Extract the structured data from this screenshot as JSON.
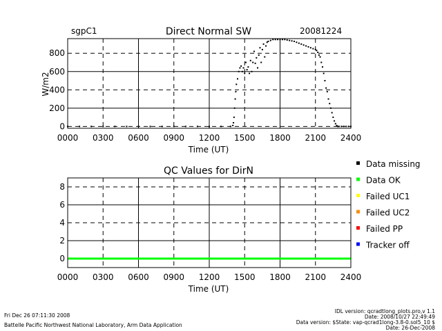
{
  "header": {
    "site": "sgpC1",
    "date": "20081224"
  },
  "chart_data": [
    {
      "type": "scatter",
      "title": "Direct Normal SW",
      "xlabel": "Time (UT)",
      "ylabel": "W/m2",
      "xlim": [
        0,
        2400
      ],
      "ylim": [
        -20,
        960
      ],
      "x_tick_labels": [
        "0000",
        "0300",
        "0600",
        "0900",
        "1200",
        "1500",
        "1800",
        "2100",
        "2400"
      ],
      "y_ticks": [
        0,
        200,
        400,
        600,
        800
      ],
      "grid": true,
      "series": [
        {
          "name": "Data missing",
          "color": "#000000",
          "x": [
            0,
            100,
            200,
            300,
            400,
            500,
            600,
            700,
            800,
            900,
            1000,
            1100,
            1200,
            1300,
            1380,
            1400,
            1405,
            1410,
            1415,
            1420,
            1425,
            1430,
            1440,
            1450,
            1460,
            1470,
            1480,
            1490,
            1500,
            1510,
            1520,
            1530,
            1540,
            1550,
            1560,
            1570,
            1580,
            1590,
            1600,
            1610,
            1620,
            1630,
            1640,
            1650,
            1660,
            1670,
            1680,
            1690,
            1700,
            1720,
            1740,
            1760,
            1780,
            1800,
            1820,
            1840,
            1860,
            1880,
            1900,
            1920,
            1940,
            1960,
            1980,
            2000,
            2020,
            2040,
            2060,
            2080,
            2100,
            2110,
            2120,
            2130,
            2140,
            2150,
            2160,
            2170,
            2180,
            2190,
            2200,
            2210,
            2220,
            2230,
            2240,
            2250,
            2260,
            2270,
            2280,
            2290,
            2300,
            2320,
            2340,
            2360,
            2380,
            2400
          ],
          "y": [
            0,
            0,
            0,
            0,
            0,
            0,
            0,
            0,
            0,
            0,
            0,
            0,
            0,
            0,
            0,
            10,
            40,
            100,
            200,
            300,
            380,
            460,
            520,
            600,
            640,
            660,
            600,
            640,
            580,
            700,
            620,
            650,
            580,
            720,
            600,
            700,
            820,
            690,
            750,
            640,
            780,
            860,
            700,
            840,
            900,
            760,
            880,
            920,
            930,
            940,
            950,
            950,
            950,
            950,
            950,
            950,
            945,
            940,
            935,
            930,
            920,
            910,
            900,
            890,
            880,
            870,
            860,
            850,
            840,
            830,
            810,
            780,
            760,
            700,
            650,
            580,
            500,
            420,
            380,
            300,
            250,
            200,
            150,
            100,
            60,
            30,
            10,
            0,
            0,
            0,
            0,
            0,
            0,
            0
          ]
        }
      ]
    },
    {
      "type": "scatter",
      "title": "QC Values for DirN",
      "xlabel": "Time (UT)",
      "ylabel": "",
      "xlim": [
        0,
        2400
      ],
      "ylim": [
        -1,
        9
      ],
      "x_tick_labels": [
        "0000",
        "0300",
        "0600",
        "0900",
        "1200",
        "1500",
        "1800",
        "2100",
        "2400"
      ],
      "y_ticks": [
        0,
        2,
        4,
        6,
        8
      ],
      "grid": true,
      "series": [
        {
          "name": "Data OK",
          "color": "#00ff00",
          "x": [
            0,
            2400
          ],
          "y": [
            0,
            0
          ]
        }
      ]
    }
  ],
  "legend": [
    {
      "label": "Data missing",
      "color": "#000000"
    },
    {
      "label": "Data OK",
      "color": "#00ff00"
    },
    {
      "label": "Failed UC1",
      "color": "#ffff00"
    },
    {
      "label": "Failed UC2",
      "color": "#ff8c00"
    },
    {
      "label": "Failed PP",
      "color": "#ff0000"
    },
    {
      "label": "Tracker off",
      "color": "#0000ff"
    }
  ],
  "footer": {
    "left_line1": "Fri Dec 26 07:11:30 2008",
    "left_line2": "Battelle Pacific Northwest National Laboratory, Arm Data Application",
    "right_line1": "IDL version: qcradtlong_plots.pro,v 1.1",
    "right_line2": "Date: 2008/10/27 22:49:49",
    "right_line3": "Data version: $State: vap-qcrad1long-3.8-0.sol5_10 $",
    "right_line4": "Date: 26-Dec-2008"
  }
}
